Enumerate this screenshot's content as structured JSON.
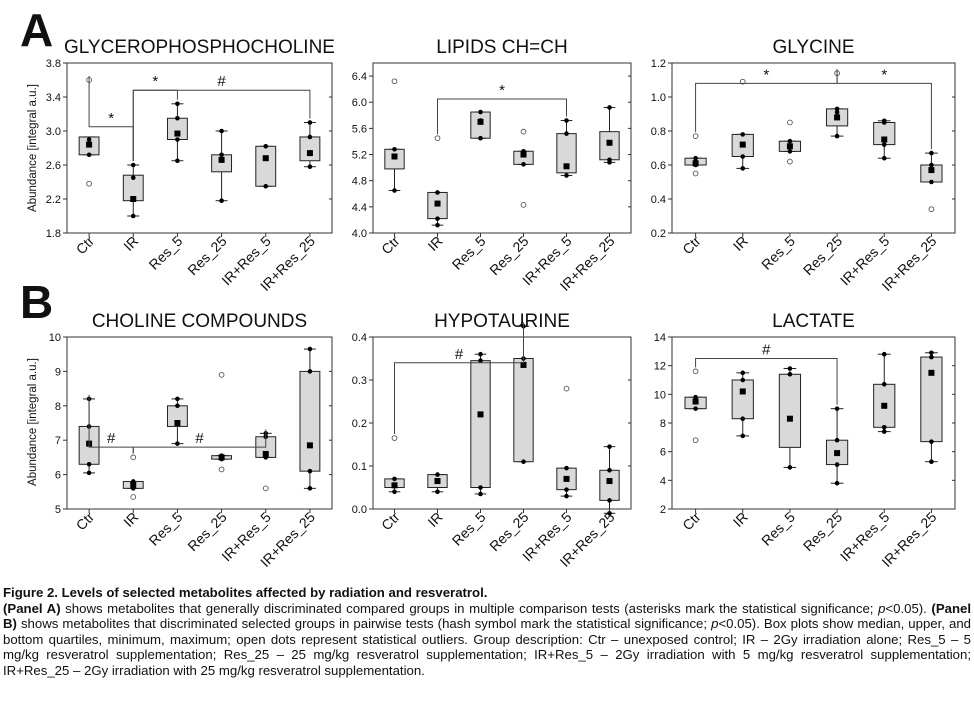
{
  "panel_letters": [
    "A",
    "B"
  ],
  "y_axis_label": "Abundance [integral a.u.]",
  "caption": {
    "title": "Figure 2. Levels of selected metabolites affected by radiation and resveratrol.",
    "panel_a_label": "(Panel A)",
    "panel_a_text": " shows metabolites that generally discriminated compared groups in multiple comparison tests (asterisks mark the statistical significance; ",
    "p_symbol": "p",
    "p_threshold": "<0.05). ",
    "panel_b_label": "(Panel B)",
    "panel_b_text": " shows metabolites that discriminated selected groups in pairwise tests (hash symbol mark the statistical significance; ",
    "p_threshold_2": "<0.05). Box plots show median, upper, and bottom quartiles, minimum, maximum; open dots represent statistical outliers. Group description: Ctr – unexposed control; IR – 2Gy irradiation alone; Res_5 – 5 mg/kg resveratrol supplementation; Res_25 – 25 mg/kg resveratrol supplementation; IR+Res_5 – 2Gy irradiation with 5 mg/kg resveratrol supplementation; IR+Res_25 – 2Gy irradiation with 25 mg/kg resveratrol supplementation."
  },
  "chart_data": [
    {
      "type": "box",
      "panel": "A",
      "title": "GLYCEROPHOSPHOCHOLINE",
      "ylabel": "Abundance [integral a.u.]",
      "ylim": [
        1.8,
        3.8
      ],
      "yticks": [
        "1.8",
        "2.2",
        "2.6",
        "3.0",
        "3.4",
        "3.8"
      ],
      "categories": [
        "Ctr",
        "IR",
        "Res_5",
        "Res_25",
        "IR+Res_5",
        "IR+Res_25"
      ],
      "boxes": [
        {
          "min": 2.72,
          "q1": 2.72,
          "median": 2.84,
          "q3": 2.93,
          "max": 2.93,
          "points": [
            2.72,
            2.85,
            2.9
          ],
          "outliers": [
            3.6,
            2.38
          ]
        },
        {
          "min": 2.0,
          "q1": 2.18,
          "median": 2.2,
          "q3": 2.48,
          "max": 2.6,
          "points": [
            2.0,
            2.2,
            2.45,
            2.6
          ],
          "outliers": []
        },
        {
          "min": 2.65,
          "q1": 2.9,
          "median": 2.97,
          "q3": 3.15,
          "max": 3.32,
          "points": [
            2.65,
            2.9,
            3.15,
            3.32
          ],
          "outliers": []
        },
        {
          "min": 2.18,
          "q1": 2.52,
          "median": 2.66,
          "q3": 2.72,
          "max": 3.0,
          "points": [
            2.18,
            2.66,
            2.72,
            3.0
          ],
          "outliers": []
        },
        {
          "min": 2.35,
          "q1": 2.35,
          "median": 2.68,
          "q3": 2.82,
          "max": 2.82,
          "points": [
            2.35,
            2.82
          ],
          "outliers": []
        },
        {
          "min": 2.58,
          "q1": 2.65,
          "median": 2.74,
          "q3": 2.93,
          "max": 3.1,
          "points": [
            2.58,
            2.93,
            3.1
          ],
          "outliers": []
        }
      ],
      "annotations": [
        {
          "symbol": "*",
          "from": 0,
          "to": 1,
          "y": 3.05
        },
        {
          "symbol": "*",
          "from": 1,
          "to": 2,
          "y": 3.48
        },
        {
          "symbol": "#",
          "from": 1,
          "to": 5,
          "y": 3.48
        }
      ]
    },
    {
      "type": "box",
      "panel": "A",
      "title": "LIPIDS CH=CH",
      "ylabel": "",
      "ylim": [
        4.0,
        6.6
      ],
      "yticks": [
        "4.0",
        "4.4",
        "4.8",
        "5.2",
        "5.6",
        "6.0",
        "6.4"
      ],
      "categories": [
        "Ctr",
        "IR",
        "Res_5",
        "Res_25",
        "IR+Res_5",
        "IR+Res_25"
      ],
      "boxes": [
        {
          "min": 4.65,
          "q1": 4.98,
          "median": 5.17,
          "q3": 5.28,
          "max": 5.28,
          "points": [
            4.65,
            5.17,
            5.28
          ],
          "outliers": [
            6.32
          ]
        },
        {
          "min": 4.12,
          "q1": 4.22,
          "median": 4.45,
          "q3": 4.62,
          "max": 4.62,
          "points": [
            4.12,
            4.22,
            4.62
          ],
          "outliers": [
            5.45
          ]
        },
        {
          "min": 5.45,
          "q1": 5.45,
          "median": 5.7,
          "q3": 5.85,
          "max": 5.85,
          "points": [
            5.45,
            5.72,
            5.85
          ],
          "outliers": []
        },
        {
          "min": 5.05,
          "q1": 5.05,
          "median": 5.2,
          "q3": 5.25,
          "max": 5.25,
          "points": [
            5.05,
            5.2,
            5.25
          ],
          "outliers": [
            5.55,
            4.43
          ]
        },
        {
          "min": 4.88,
          "q1": 4.92,
          "median": 5.02,
          "q3": 5.52,
          "max": 5.72,
          "points": [
            4.88,
            5.02,
            5.52,
            5.72
          ],
          "outliers": []
        },
        {
          "min": 5.08,
          "q1": 5.12,
          "median": 5.38,
          "q3": 5.55,
          "max": 5.92,
          "points": [
            5.08,
            5.12,
            5.92
          ],
          "outliers": []
        }
      ],
      "annotations": [
        {
          "symbol": "*",
          "from": 1,
          "to": 4,
          "y": 6.05
        }
      ]
    },
    {
      "type": "box",
      "panel": "A",
      "title": "GLYCINE",
      "ylabel": "",
      "ylim": [
        0.2,
        1.2
      ],
      "yticks": [
        "0.2",
        "0.4",
        "0.6",
        "0.8",
        "1.0",
        "1.2"
      ],
      "categories": [
        "Ctr",
        "IR",
        "Res_5",
        "Res_25",
        "IR+Res_5",
        "IR+Res_25"
      ],
      "boxes": [
        {
          "min": 0.6,
          "q1": 0.6,
          "median": 0.61,
          "q3": 0.64,
          "max": 0.64,
          "points": [
            0.6,
            0.62,
            0.64
          ],
          "outliers": [
            0.77,
            0.55
          ]
        },
        {
          "min": 0.58,
          "q1": 0.65,
          "median": 0.72,
          "q3": 0.78,
          "max": 0.78,
          "points": [
            0.58,
            0.65,
            0.72,
            0.78
          ],
          "outliers": [
            1.09
          ]
        },
        {
          "min": 0.68,
          "q1": 0.68,
          "median": 0.71,
          "q3": 0.74,
          "max": 0.74,
          "points": [
            0.68,
            0.71,
            0.74
          ],
          "outliers": [
            0.85,
            0.62
          ]
        },
        {
          "min": 0.77,
          "q1": 0.83,
          "median": 0.88,
          "q3": 0.93,
          "max": 0.93,
          "points": [
            0.77,
            0.88,
            0.91,
            0.93
          ],
          "outliers": [
            1.14
          ]
        },
        {
          "min": 0.64,
          "q1": 0.72,
          "median": 0.75,
          "q3": 0.85,
          "max": 0.86,
          "points": [
            0.64,
            0.72,
            0.85,
            0.86
          ],
          "outliers": []
        },
        {
          "min": 0.5,
          "q1": 0.5,
          "median": 0.57,
          "q3": 0.6,
          "max": 0.67,
          "points": [
            0.5,
            0.57,
            0.6,
            0.67
          ],
          "outliers": [
            0.34
          ]
        }
      ],
      "annotations": [
        {
          "symbol": "*",
          "from": 0,
          "to": 3,
          "y": 1.08
        },
        {
          "symbol": "*",
          "from": 3,
          "to": 5,
          "y": 1.08
        }
      ]
    },
    {
      "type": "box",
      "panel": "B",
      "title": "CHOLINE COMPOUNDS",
      "ylabel": "Abundance [integral a.u.]",
      "ylim": [
        5,
        10
      ],
      "yticks": [
        "5",
        "6",
        "7",
        "8",
        "9",
        "10"
      ],
      "categories": [
        "Ctr",
        "IR",
        "Res_5",
        "Res_25",
        "IR+Res_5",
        "IR+Res_25"
      ],
      "boxes": [
        {
          "min": 6.05,
          "q1": 6.3,
          "median": 6.9,
          "q3": 7.4,
          "max": 8.2,
          "points": [
            6.05,
            6.3,
            7.4,
            8.2
          ],
          "outliers": []
        },
        {
          "min": 5.6,
          "q1": 5.6,
          "median": 5.7,
          "q3": 5.8,
          "max": 5.8,
          "points": [
            5.6,
            5.72,
            5.8
          ],
          "outliers": [
            6.5,
            5.35
          ]
        },
        {
          "min": 6.9,
          "q1": 7.4,
          "median": 7.5,
          "q3": 8.0,
          "max": 8.2,
          "points": [
            6.9,
            7.5,
            8.0,
            8.2
          ],
          "outliers": []
        },
        {
          "min": 6.45,
          "q1": 6.45,
          "median": 6.5,
          "q3": 6.55,
          "max": 6.55,
          "points": [
            6.45,
            6.55
          ],
          "outliers": [
            8.9,
            6.15
          ]
        },
        {
          "min": 6.5,
          "q1": 6.5,
          "median": 6.6,
          "q3": 7.1,
          "max": 7.2,
          "points": [
            6.5,
            6.6,
            7.1,
            7.2
          ],
          "outliers": [
            5.6
          ]
        },
        {
          "min": 5.6,
          "q1": 6.1,
          "median": 6.85,
          "q3": 9.0,
          "max": 9.65,
          "points": [
            5.6,
            6.1,
            9.0,
            9.65
          ],
          "outliers": []
        }
      ],
      "annotations": [
        {
          "symbol": "#",
          "from": 0,
          "to": 1,
          "y": 6.8
        },
        {
          "symbol": "#",
          "from": 1,
          "to": 4,
          "y": 6.8
        }
      ]
    },
    {
      "type": "box",
      "panel": "B",
      "title": "HYPOTAURINE",
      "ylabel": "",
      "ylim": [
        0.0,
        0.4
      ],
      "yticks": [
        "0.0",
        "0.1",
        "0.2",
        "0.3",
        "0.4"
      ],
      "categories": [
        "Ctr",
        "IR",
        "Res_5",
        "Res_25",
        "IR+Res_5",
        "IR+Res_25"
      ],
      "boxes": [
        {
          "min": 0.04,
          "q1": 0.05,
          "median": 0.055,
          "q3": 0.07,
          "max": 0.07,
          "points": [
            0.04,
            0.055,
            0.07
          ],
          "outliers": [
            0.165
          ]
        },
        {
          "min": 0.04,
          "q1": 0.05,
          "median": 0.065,
          "q3": 0.08,
          "max": 0.08,
          "points": [
            0.04,
            0.065,
            0.08
          ],
          "outliers": []
        },
        {
          "min": 0.035,
          "q1": 0.05,
          "median": 0.22,
          "q3": 0.345,
          "max": 0.36,
          "points": [
            0.035,
            0.05,
            0.345,
            0.36
          ],
          "outliers": []
        },
        {
          "min": 0.11,
          "q1": 0.11,
          "median": 0.335,
          "q3": 0.35,
          "max": 0.425,
          "points": [
            0.11,
            0.35,
            0.425
          ],
          "outliers": []
        },
        {
          "min": 0.03,
          "q1": 0.045,
          "median": 0.07,
          "q3": 0.095,
          "max": 0.095,
          "points": [
            0.03,
            0.045,
            0.095
          ],
          "outliers": [
            0.28
          ]
        },
        {
          "min": -0.01,
          "q1": 0.02,
          "median": 0.065,
          "q3": 0.09,
          "max": 0.145,
          "points": [
            -0.01,
            0.02,
            0.09,
            0.145
          ],
          "outliers": []
        }
      ],
      "annotations": [
        {
          "symbol": "#",
          "from": 0,
          "to": 3,
          "y": 0.34
        }
      ]
    },
    {
      "type": "box",
      "panel": "B",
      "title": "LACTATE",
      "ylabel": "",
      "ylim": [
        2,
        14
      ],
      "yticks": [
        "2",
        "4",
        "6",
        "8",
        "10",
        "12",
        "14"
      ],
      "categories": [
        "Ctr",
        "IR",
        "Res_5",
        "Res_25",
        "IR+Res_5",
        "IR+Res_25"
      ],
      "boxes": [
        {
          "min": 9.0,
          "q1": 9.0,
          "median": 9.5,
          "q3": 9.8,
          "max": 9.8,
          "points": [
            9.0,
            9.5,
            9.8
          ],
          "outliers": [
            11.6,
            6.8
          ]
        },
        {
          "min": 7.1,
          "q1": 8.3,
          "median": 10.2,
          "q3": 11.0,
          "max": 11.5,
          "points": [
            7.1,
            8.3,
            11.0,
            11.5
          ],
          "outliers": []
        },
        {
          "min": 4.9,
          "q1": 6.3,
          "median": 8.3,
          "q3": 11.4,
          "max": 11.8,
          "points": [
            4.9,
            11.4,
            11.8
          ],
          "outliers": []
        },
        {
          "min": 3.8,
          "q1": 5.1,
          "median": 5.9,
          "q3": 6.8,
          "max": 9.0,
          "points": [
            3.8,
            5.1,
            6.8,
            9.0
          ],
          "outliers": []
        },
        {
          "min": 7.4,
          "q1": 7.7,
          "median": 9.2,
          "q3": 10.7,
          "max": 12.8,
          "points": [
            7.4,
            7.7,
            10.7,
            12.8
          ],
          "outliers": []
        },
        {
          "min": 5.3,
          "q1": 6.7,
          "median": 11.5,
          "q3": 12.6,
          "max": 12.9,
          "points": [
            5.3,
            6.7,
            12.6,
            12.9
          ],
          "outliers": []
        }
      ],
      "annotations": [
        {
          "symbol": "#",
          "from": 0,
          "to": 3,
          "y": 12.5
        }
      ]
    }
  ]
}
